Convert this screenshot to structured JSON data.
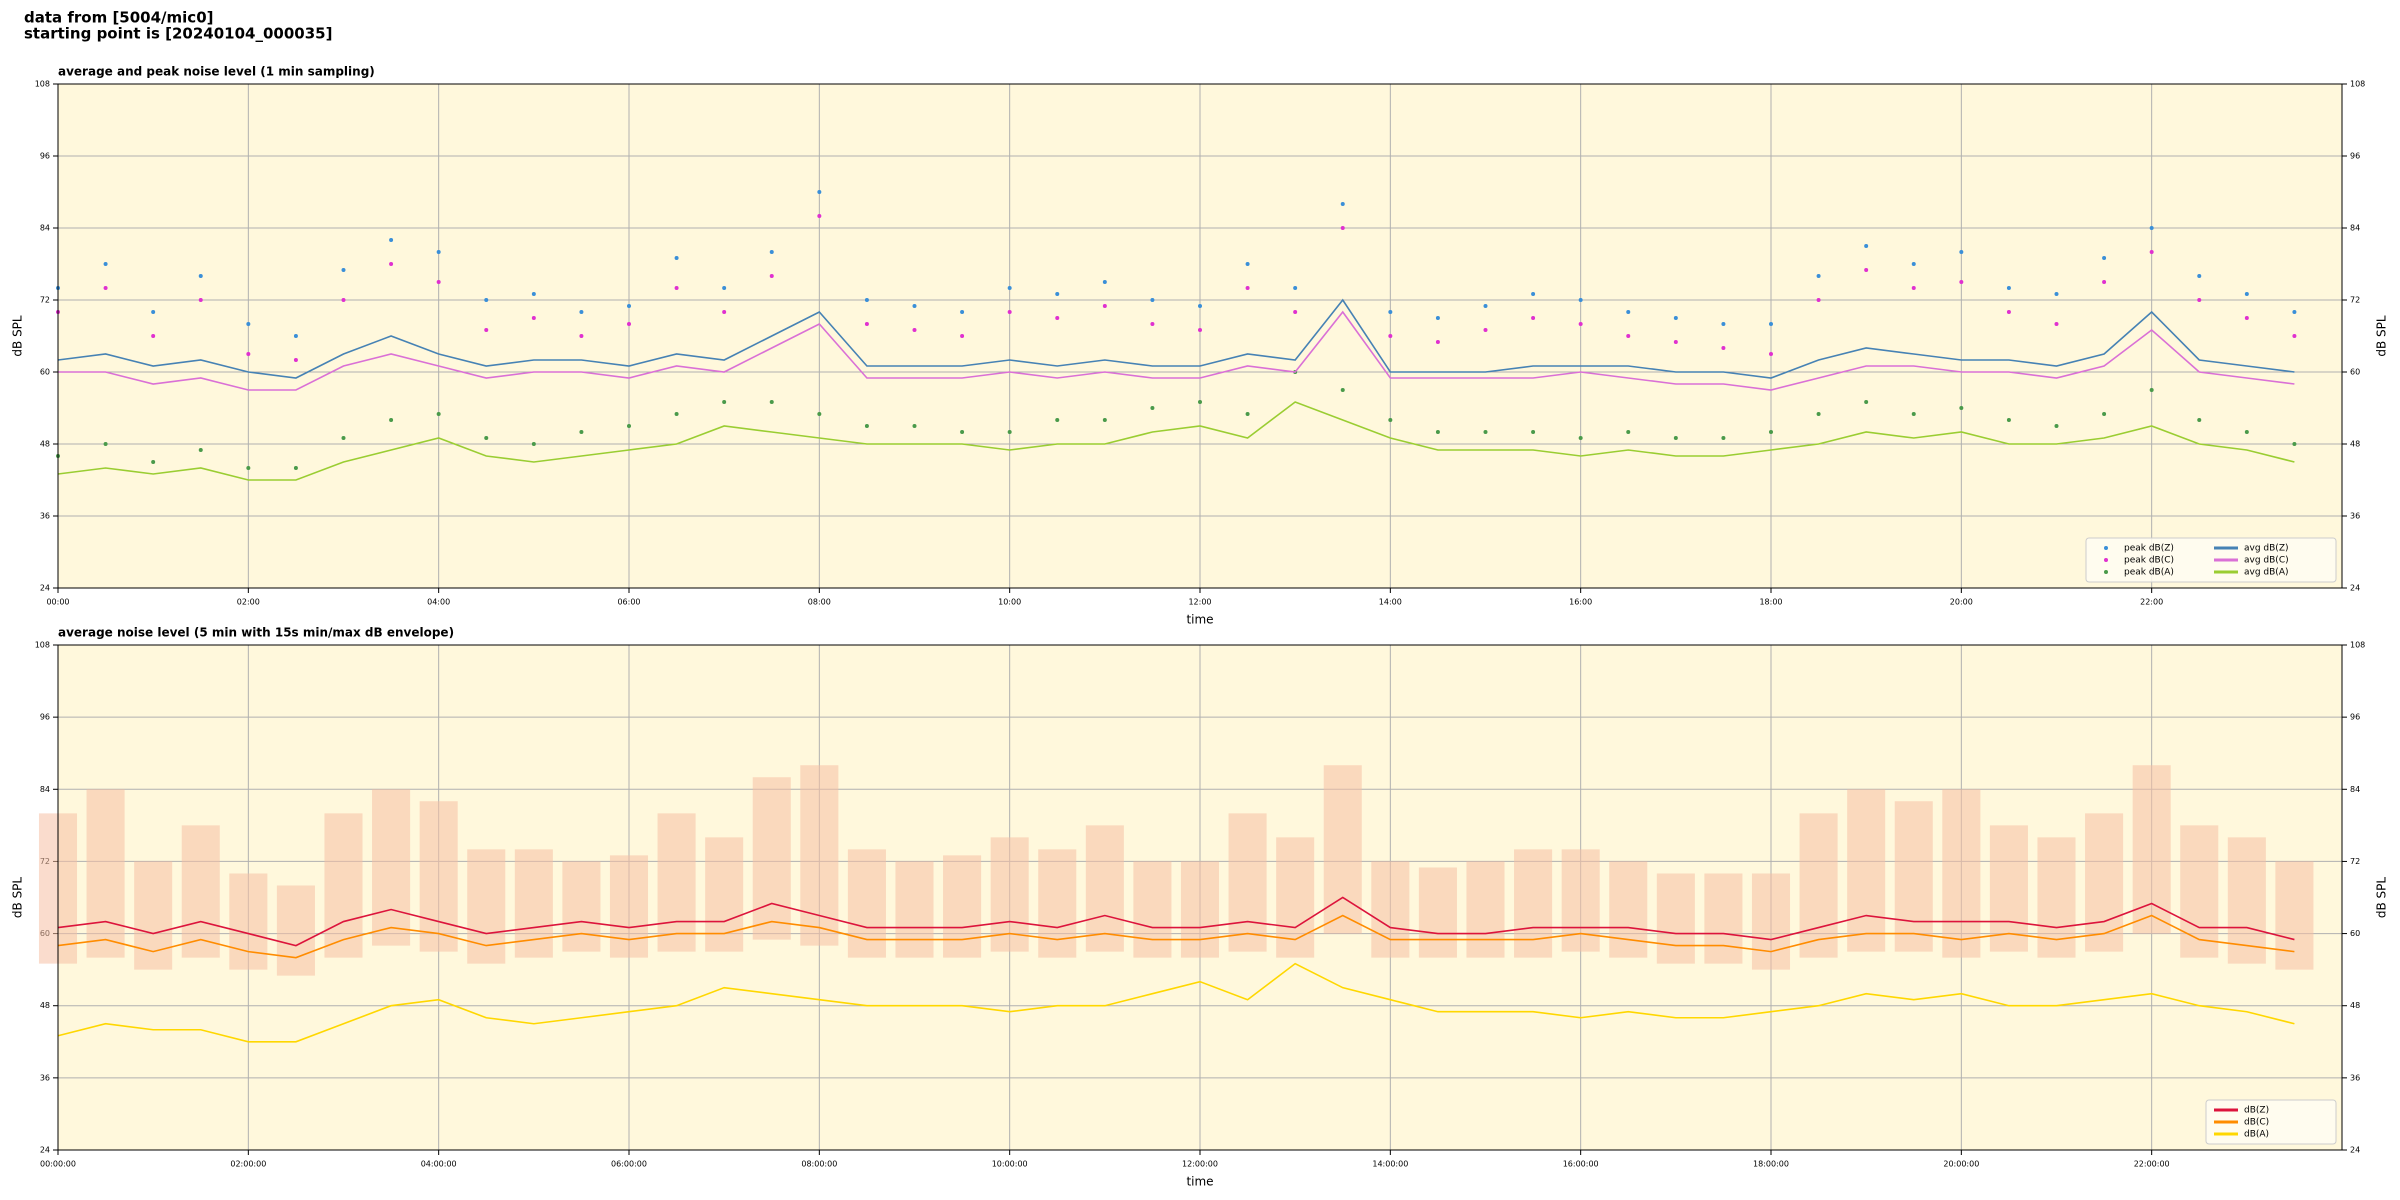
{
  "header": {
    "line1": "data from [5004/mic0]",
    "line2": "starting point is [20240104_000035]"
  },
  "chart_data": [
    {
      "type": "line",
      "title": "average and peak noise level (1 min sampling)",
      "xlabel": "time",
      "ylabel": "dB SPL",
      "y2label": "dB SPL",
      "xlim": [
        0,
        24
      ],
      "ylim": [
        24,
        108
      ],
      "y2lim": [
        24,
        108
      ],
      "grid": true,
      "legend": "lower right",
      "legend_columns": 2,
      "xticks": [
        {
          "value": 0,
          "label": "00:00"
        },
        {
          "value": 2,
          "label": "02:00"
        },
        {
          "value": 4,
          "label": "04:00"
        },
        {
          "value": 6,
          "label": "06:00"
        },
        {
          "value": 8,
          "label": "08:00"
        },
        {
          "value": 10,
          "label": "10:00"
        },
        {
          "value": 12,
          "label": "12:00"
        },
        {
          "value": 14,
          "label": "14:00"
        },
        {
          "value": 16,
          "label": "16:00"
        },
        {
          "value": 18,
          "label": "18:00"
        },
        {
          "value": 20,
          "label": "20:00"
        },
        {
          "value": 22,
          "label": "22:00"
        }
      ],
      "yticks": [
        24,
        36,
        48,
        60,
        72,
        84,
        96,
        108
      ],
      "y2ticks": [
        24,
        36,
        48,
        60,
        72,
        84,
        96,
        108
      ],
      "x": [
        0,
        0.5,
        1,
        1.5,
        2,
        2.5,
        3,
        3.5,
        4,
        4.5,
        5,
        5.5,
        6,
        6.5,
        7,
        7.5,
        8,
        8.5,
        9,
        9.5,
        10,
        10.5,
        11,
        11.5,
        12,
        12.5,
        13,
        13.5,
        14,
        14.5,
        15,
        15.5,
        16,
        16.5,
        17,
        17.5,
        18,
        18.5,
        19,
        19.5,
        20,
        20.5,
        21,
        21.5,
        22,
        22.5,
        23,
        23.5
      ],
      "series": [
        {
          "name": "peak dB(Z)",
          "color": "#3a8fd8",
          "mode": "markers",
          "values": [
            74,
            78,
            70,
            76,
            68,
            66,
            77,
            82,
            80,
            72,
            73,
            70,
            71,
            79,
            74,
            80,
            90,
            72,
            71,
            70,
            74,
            73,
            75,
            72,
            71,
            78,
            74,
            88,
            70,
            69,
            71,
            73,
            72,
            70,
            69,
            68,
            68,
            76,
            81,
            78,
            80,
            74,
            73,
            79,
            84,
            76,
            73,
            70
          ]
        },
        {
          "name": "peak dB(C)",
          "color": "#e030d0",
          "mode": "markers",
          "values": [
            70,
            74,
            66,
            72,
            63,
            62,
            72,
            78,
            75,
            67,
            69,
            66,
            68,
            74,
            70,
            76,
            86,
            68,
            67,
            66,
            70,
            69,
            71,
            68,
            67,
            74,
            70,
            84,
            66,
            65,
            67,
            69,
            68,
            66,
            65,
            64,
            63,
            72,
            77,
            74,
            75,
            70,
            68,
            75,
            80,
            72,
            69,
            66
          ]
        },
        {
          "name": "peak dB(A)",
          "color": "#4a9a4a",
          "mode": "markers",
          "values": [
            46,
            48,
            45,
            47,
            44,
            44,
            49,
            52,
            53,
            49,
            48,
            50,
            51,
            53,
            55,
            55,
            53,
            51,
            51,
            50,
            50,
            52,
            52,
            54,
            55,
            53,
            60,
            57,
            52,
            50,
            50,
            50,
            49,
            50,
            49,
            49,
            50,
            53,
            55,
            53,
            54,
            52,
            51,
            53,
            57,
            52,
            50,
            48
          ]
        },
        {
          "name": "avg dB(Z)",
          "color": "#4682b4",
          "mode": "lines",
          "values": [
            62,
            63,
            61,
            62,
            60,
            59,
            63,
            66,
            63,
            61,
            62,
            62,
            61,
            63,
            62,
            66,
            70,
            61,
            61,
            61,
            62,
            61,
            62,
            61,
            61,
            63,
            62,
            72,
            60,
            60,
            60,
            61,
            61,
            61,
            60,
            60,
            59,
            62,
            64,
            63,
            62,
            62,
            61,
            63,
            70,
            62,
            61,
            60
          ]
        },
        {
          "name": "avg dB(C)",
          "color": "#da70d6",
          "mode": "lines",
          "values": [
            60,
            60,
            58,
            59,
            57,
            57,
            61,
            63,
            61,
            59,
            60,
            60,
            59,
            61,
            60,
            64,
            68,
            59,
            59,
            59,
            60,
            59,
            60,
            59,
            59,
            61,
            60,
            70,
            59,
            59,
            59,
            59,
            60,
            59,
            58,
            58,
            57,
            59,
            61,
            61,
            60,
            60,
            59,
            61,
            67,
            60,
            59,
            58
          ]
        },
        {
          "name": "avg dB(A)",
          "color": "#9acd32",
          "mode": "lines",
          "values": [
            43,
            44,
            43,
            44,
            42,
            42,
            45,
            47,
            49,
            46,
            45,
            46,
            47,
            48,
            51,
            50,
            49,
            48,
            48,
            48,
            47,
            48,
            48,
            50,
            51,
            49,
            55,
            52,
            49,
            47,
            47,
            47,
            46,
            47,
            46,
            46,
            47,
            48,
            50,
            49,
            50,
            48,
            48,
            49,
            51,
            48,
            47,
            45
          ]
        }
      ]
    },
    {
      "type": "line",
      "title": "average noise level (5 min with 15s min/max dB envelope)",
      "xlabel": "time",
      "ylabel": "dB SPL",
      "y2label": "dB SPL",
      "xlim": [
        0,
        24
      ],
      "ylim": [
        24,
        108
      ],
      "y2lim": [
        24,
        108
      ],
      "grid": true,
      "legend": "lower right",
      "legend_columns": 1,
      "xticks": [
        {
          "value": 0,
          "label": "00:00:00"
        },
        {
          "value": 2,
          "label": "02:00:00"
        },
        {
          "value": 4,
          "label": "04:00:00"
        },
        {
          "value": 6,
          "label": "06:00:00"
        },
        {
          "value": 8,
          "label": "08:00:00"
        },
        {
          "value": 10,
          "label": "10:00:00"
        },
        {
          "value": 12,
          "label": "12:00:00"
        },
        {
          "value": 14,
          "label": "14:00:00"
        },
        {
          "value": 16,
          "label": "16:00:00"
        },
        {
          "value": 18,
          "label": "18:00:00"
        },
        {
          "value": 20,
          "label": "20:00:00"
        },
        {
          "value": 22,
          "label": "22:00:00"
        }
      ],
      "yticks": [
        24,
        36,
        48,
        60,
        72,
        84,
        96,
        108
      ],
      "y2ticks": [
        24,
        36,
        48,
        60,
        72,
        84,
        96,
        108
      ],
      "x": [
        0,
        0.5,
        1,
        1.5,
        2,
        2.5,
        3,
        3.5,
        4,
        4.5,
        5,
        5.5,
        6,
        6.5,
        7,
        7.5,
        8,
        8.5,
        9,
        9.5,
        10,
        10.5,
        11,
        11.5,
        12,
        12.5,
        13,
        13.5,
        14,
        14.5,
        15,
        15.5,
        16,
        16.5,
        17,
        17.5,
        18,
        18.5,
        19,
        19.5,
        20,
        20.5,
        21,
        21.5,
        22,
        22.5,
        23,
        23.5
      ],
      "envelope": {
        "color": "#f5c0a4",
        "low": [
          55,
          56,
          54,
          56,
          54,
          53,
          56,
          58,
          57,
          55,
          56,
          57,
          56,
          57,
          57,
          59,
          58,
          56,
          56,
          56,
          57,
          56,
          57,
          56,
          56,
          57,
          56,
          60,
          56,
          56,
          56,
          56,
          57,
          56,
          55,
          55,
          54,
          56,
          57,
          57,
          56,
          57,
          56,
          57,
          60,
          56,
          55,
          54
        ],
        "high": [
          80,
          84,
          72,
          78,
          70,
          68,
          80,
          84,
          82,
          74,
          74,
          72,
          73,
          80,
          76,
          86,
          88,
          74,
          72,
          73,
          76,
          74,
          78,
          72,
          72,
          80,
          76,
          88,
          72,
          71,
          72,
          74,
          74,
          72,
          70,
          70,
          70,
          80,
          84,
          82,
          84,
          78,
          76,
          80,
          88,
          78,
          76,
          72
        ]
      },
      "series": [
        {
          "name": "dB(Z)",
          "color": "#dc143c",
          "mode": "lines",
          "values": [
            61,
            62,
            60,
            62,
            60,
            58,
            62,
            64,
            62,
            60,
            61,
            62,
            61,
            62,
            62,
            65,
            63,
            61,
            61,
            61,
            62,
            61,
            63,
            61,
            61,
            62,
            61,
            66,
            61,
            60,
            60,
            61,
            61,
            61,
            60,
            60,
            59,
            61,
            63,
            62,
            62,
            62,
            61,
            62,
            65,
            61,
            61,
            59
          ]
        },
        {
          "name": "dB(C)",
          "color": "#ff8c00",
          "mode": "lines",
          "values": [
            58,
            59,
            57,
            59,
            57,
            56,
            59,
            61,
            60,
            58,
            59,
            60,
            59,
            60,
            60,
            62,
            61,
            59,
            59,
            59,
            60,
            59,
            60,
            59,
            59,
            60,
            59,
            63,
            59,
            59,
            59,
            59,
            60,
            59,
            58,
            58,
            57,
            59,
            60,
            60,
            59,
            60,
            59,
            60,
            63,
            59,
            58,
            57
          ]
        },
        {
          "name": "dB(A)",
          "color": "#ffd700",
          "mode": "lines",
          "values": [
            43,
            45,
            44,
            44,
            42,
            42,
            45,
            48,
            49,
            46,
            45,
            46,
            47,
            48,
            51,
            50,
            49,
            48,
            48,
            48,
            47,
            48,
            48,
            50,
            52,
            49,
            55,
            51,
            49,
            47,
            47,
            47,
            46,
            47,
            46,
            46,
            47,
            48,
            50,
            49,
            50,
            48,
            48,
            49,
            50,
            48,
            47,
            45
          ]
        }
      ]
    }
  ]
}
